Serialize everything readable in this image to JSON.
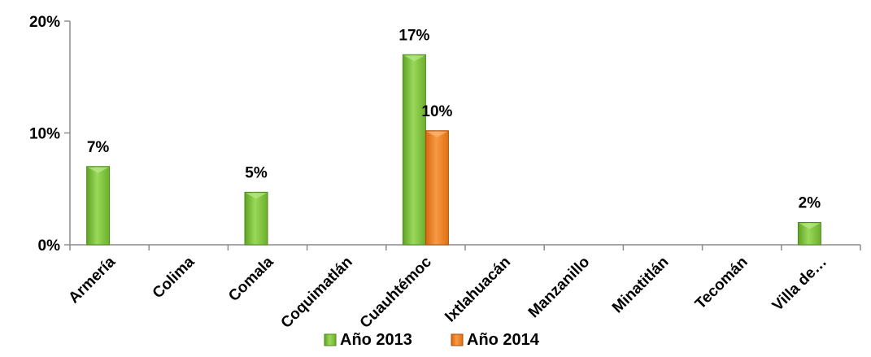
{
  "chart_data": {
    "type": "bar",
    "categories": [
      "Armería",
      "Colima",
      "Comala",
      "Coquimatlán",
      "Cuauhtémoc",
      "Ixtlahuacán",
      "Manzanillo",
      "Minatitlán",
      "Tecomán",
      "Villa de…"
    ],
    "series": [
      {
        "name": "Año 2013",
        "values": [
          0.07,
          0,
          0.047,
          0,
          0.17,
          0,
          0,
          0,
          0,
          0.02
        ],
        "labels": [
          "7%",
          "",
          "5%",
          "",
          "17%",
          "",
          "",
          "",
          "",
          "2%"
        ],
        "color": "#7dc53a",
        "edge": "#4f8a1e"
      },
      {
        "name": "Año 2014",
        "values": [
          0,
          0,
          0,
          0,
          0.102,
          0,
          0,
          0,
          0,
          0
        ],
        "labels": [
          "",
          "",
          "",
          "",
          "10%",
          "",
          "",
          "",
          "",
          ""
        ],
        "color": "#f07f1e",
        "edge": "#a94f0c"
      }
    ],
    "ylim": [
      0,
      0.2
    ],
    "yticks": [
      0,
      0.1,
      0.2
    ],
    "ytick_labels": [
      "0%",
      "10%",
      "20%"
    ],
    "grid": false,
    "legend_position": "bottom",
    "title": "",
    "xlabel": "",
    "ylabel": ""
  }
}
